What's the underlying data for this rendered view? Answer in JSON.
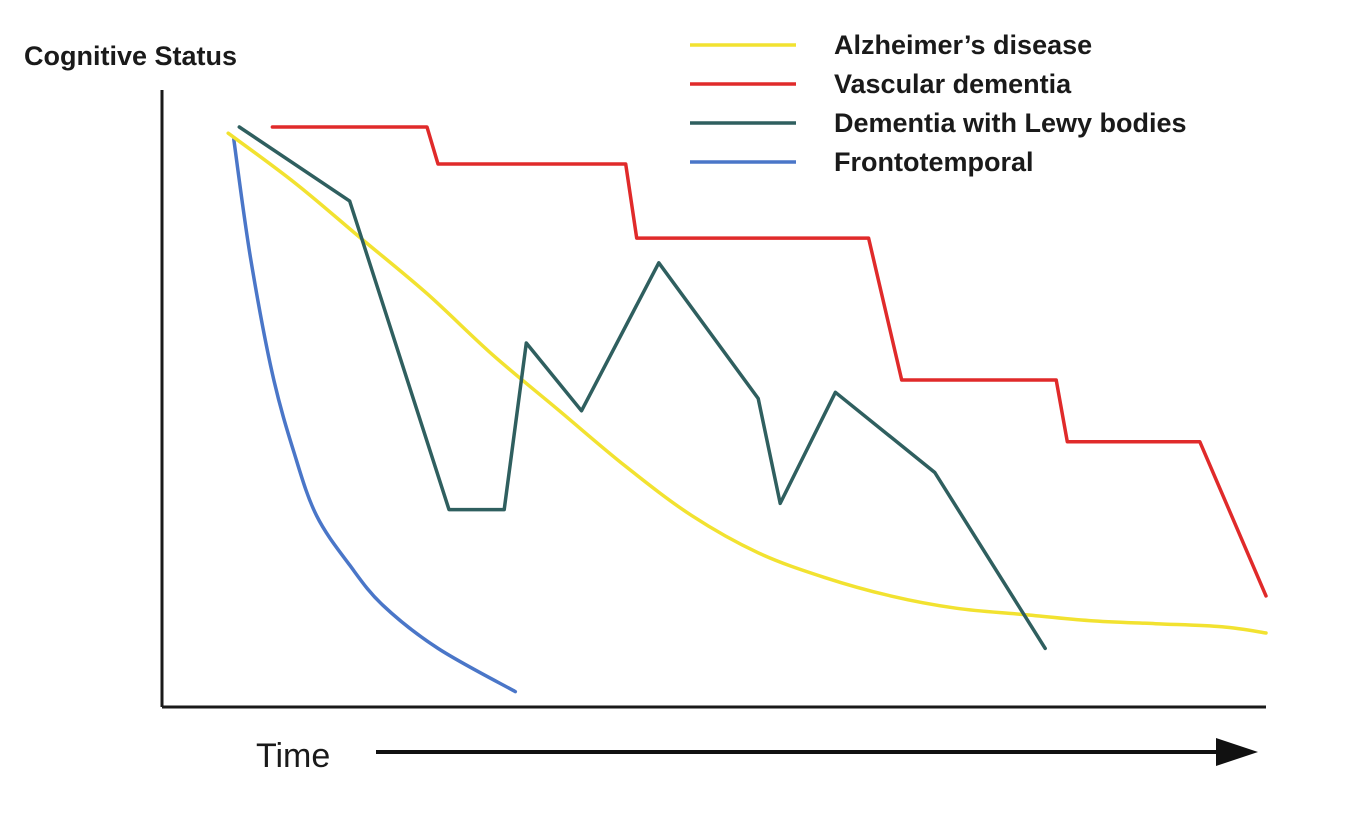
{
  "chart_data": {
    "type": "line",
    "title": "",
    "ylabel": "Cognitive Status",
    "xlabel": "Time",
    "xlim": [
      0,
      100
    ],
    "ylim": [
      0,
      100
    ],
    "grid": false,
    "legend_position": "top-right",
    "series": [
      {
        "name": "Alzheimer’s disease",
        "color": "#f2e230",
        "x": [
          6,
          12,
          18,
          24,
          30,
          36,
          42,
          48,
          54,
          60,
          66,
          72,
          78,
          84,
          90,
          96,
          100
        ],
        "y": [
          93,
          85,
          76,
          67,
          57,
          48,
          39,
          31,
          25,
          21,
          18,
          16,
          15,
          14,
          13.5,
          13,
          12
        ]
      },
      {
        "name": "Vascular dementia",
        "color": "#e02a2a",
        "x": [
          10,
          24,
          25,
          42,
          43,
          64,
          67,
          81,
          82,
          94,
          100
        ],
        "y": [
          94,
          94,
          88,
          88,
          76,
          76,
          53,
          53,
          43,
          43,
          18
        ]
      },
      {
        "name": "Dementia with Lewy bodies",
        "color": "#2f5f5f",
        "x": [
          7,
          17,
          26,
          31,
          33,
          38,
          45,
          54,
          56,
          61,
          70,
          80
        ],
        "y": [
          94,
          82,
          32,
          32,
          59,
          48,
          72,
          50,
          33,
          51,
          38,
          9.5
        ]
      },
      {
        "name": "Frontotemporal",
        "color": "#4a76c8",
        "x": [
          6.5,
          8,
          10,
          12,
          14,
          17,
          20,
          25,
          32
        ],
        "y": [
          92,
          73,
          54,
          41,
          31,
          23,
          16.5,
          9.5,
          2.5
        ]
      }
    ]
  }
}
